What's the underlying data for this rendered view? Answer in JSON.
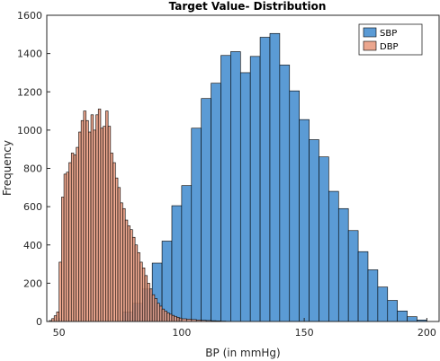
{
  "chart_data": {
    "type": "bar",
    "title": "Target Value- Distribution",
    "xlabel": "BP (in mmHg)",
    "ylabel": "Frequency",
    "xlim": [
      45,
      205
    ],
    "ylim": [
      0,
      1600
    ],
    "xticks": [
      50,
      100,
      150,
      200
    ],
    "yticks": [
      0,
      200,
      400,
      600,
      800,
      1000,
      1200,
      1400,
      1600
    ],
    "legend_position": "top-right",
    "series": [
      {
        "name": "SBP",
        "color": "#5B9BD5",
        "bin_edges": [
          76,
          80,
          84,
          88,
          92,
          96,
          100,
          104,
          108,
          112,
          116,
          120,
          124,
          128,
          132,
          136,
          140,
          144,
          148,
          152,
          156,
          160,
          164,
          168,
          172,
          176,
          180,
          184,
          188,
          192,
          196,
          200
        ],
        "values": [
          50,
          95,
          170,
          305,
          420,
          605,
          710,
          1010,
          1165,
          1245,
          1390,
          1410,
          1300,
          1385,
          1485,
          1505,
          1340,
          1205,
          1055,
          950,
          860,
          680,
          590,
          475,
          365,
          270,
          180,
          110,
          55,
          25,
          8
        ]
      },
      {
        "name": "DBP",
        "color": "#E8967A",
        "bin_edges": [
          46,
          47,
          48,
          49,
          50,
          51,
          52,
          53,
          54,
          55,
          56,
          57,
          58,
          59,
          60,
          61,
          62,
          63,
          64,
          65,
          66,
          67,
          68,
          69,
          70,
          71,
          72,
          73,
          74,
          75,
          76,
          77,
          78,
          79,
          80,
          81,
          82,
          83,
          84,
          85,
          86,
          87,
          88,
          89,
          90,
          91,
          92,
          93,
          94,
          95,
          96,
          97,
          98,
          99,
          100,
          102,
          104,
          106,
          108,
          110,
          112,
          114,
          116,
          118,
          120
        ],
        "values": [
          5,
          15,
          30,
          50,
          310,
          650,
          770,
          780,
          830,
          880,
          870,
          910,
          990,
          1050,
          1100,
          1050,
          990,
          1080,
          1000,
          1080,
          1110,
          1010,
          1020,
          1100,
          1020,
          880,
          830,
          750,
          700,
          620,
          590,
          530,
          500,
          480,
          440,
          400,
          360,
          310,
          280,
          240,
          200,
          170,
          140,
          120,
          95,
          80,
          65,
          55,
          45,
          38,
          32,
          27,
          22,
          18,
          14,
          12,
          10,
          8,
          6,
          5,
          4,
          3,
          2,
          1
        ]
      }
    ]
  }
}
